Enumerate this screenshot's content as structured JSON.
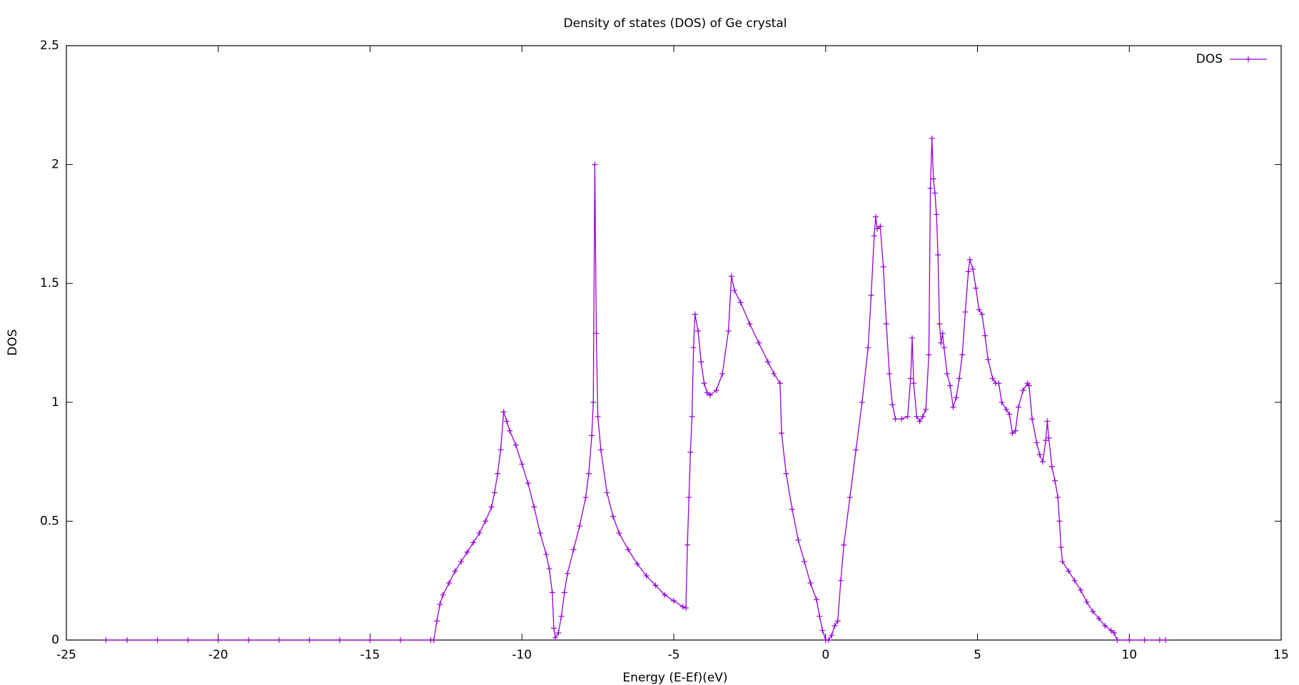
{
  "chart_data": {
    "type": "line",
    "title": "Density of states (DOS) of Ge crystal",
    "xlabel": "Energy (E-Ef)(eV)",
    "ylabel": "DOS",
    "x": [
      -23.7,
      -23,
      -22,
      -21,
      -20,
      -19,
      -18,
      -17,
      -16,
      -15,
      -14,
      -13,
      -12.9,
      -12.8,
      -12.7,
      -12.6,
      -12.4,
      -12.2,
      -12.0,
      -11.8,
      -11.6,
      -11.4,
      -11.2,
      -11.0,
      -10.9,
      -10.8,
      -10.7,
      -10.6,
      -10.5,
      -10.4,
      -10.2,
      -10.0,
      -9.8,
      -9.6,
      -9.4,
      -9.2,
      -9.1,
      -9.0,
      -8.95,
      -8.9,
      -8.8,
      -8.7,
      -8.6,
      -8.5,
      -8.3,
      -8.1,
      -7.9,
      -7.8,
      -7.7,
      -7.65,
      -7.6,
      -7.55,
      -7.5,
      -7.4,
      -7.2,
      -7.0,
      -6.8,
      -6.5,
      -6.2,
      -5.9,
      -5.6,
      -5.3,
      -5.0,
      -4.7,
      -4.6,
      -4.55,
      -4.5,
      -4.45,
      -4.4,
      -4.35,
      -4.3,
      -4.2,
      -4.1,
      -4.0,
      -3.9,
      -3.8,
      -3.6,
      -3.4,
      -3.2,
      -3.1,
      -3.0,
      -2.8,
      -2.5,
      -2.2,
      -1.9,
      -1.7,
      -1.5,
      -1.45,
      -1.3,
      -1.1,
      -0.9,
      -0.7,
      -0.5,
      -0.3,
      -0.2,
      -0.1,
      0.0,
      0.1,
      0.2,
      0.3,
      0.4,
      0.5,
      0.6,
      0.8,
      1.0,
      1.2,
      1.4,
      1.5,
      1.6,
      1.65,
      1.7,
      1.8,
      1.9,
      2.0,
      2.1,
      2.2,
      2.3,
      2.5,
      2.7,
      2.8,
      2.85,
      2.9,
      3.0,
      3.1,
      3.2,
      3.3,
      3.4,
      3.45,
      3.5,
      3.55,
      3.6,
      3.65,
      3.7,
      3.75,
      3.8,
      3.85,
      3.9,
      4.0,
      4.1,
      4.2,
      4.3,
      4.4,
      4.5,
      4.6,
      4.7,
      4.75,
      4.85,
      4.95,
      5.05,
      5.15,
      5.25,
      5.35,
      5.5,
      5.6,
      5.7,
      5.8,
      5.95,
      6.05,
      6.15,
      6.25,
      6.35,
      6.5,
      6.65,
      6.7,
      6.8,
      6.95,
      7.05,
      7.15,
      7.25,
      7.3,
      7.35,
      7.45,
      7.55,
      7.65,
      7.7,
      7.75,
      7.8,
      8.0,
      8.2,
      8.4,
      8.6,
      8.8,
      9.0,
      9.2,
      9.4,
      9.5,
      9.6,
      10.0,
      10.5,
      11.0,
      11.2
    ],
    "series": [
      {
        "name": "DOS",
        "color": "#9400d3",
        "values": [
          0,
          0,
          0,
          0,
          0,
          0,
          0,
          0,
          0,
          0,
          0,
          0,
          0,
          0.08,
          0.15,
          0.19,
          0.24,
          0.29,
          0.33,
          0.37,
          0.41,
          0.45,
          0.5,
          0.56,
          0.62,
          0.7,
          0.8,
          0.96,
          0.92,
          0.88,
          0.82,
          0.74,
          0.66,
          0.56,
          0.45,
          0.36,
          0.3,
          0.2,
          0.05,
          0.01,
          0.03,
          0.1,
          0.2,
          0.28,
          0.38,
          0.48,
          0.6,
          0.7,
          0.86,
          1.0,
          2.0,
          1.29,
          0.94,
          0.8,
          0.62,
          0.52,
          0.45,
          0.38,
          0.32,
          0.27,
          0.23,
          0.19,
          0.165,
          0.14,
          0.135,
          0.4,
          0.6,
          0.79,
          0.94,
          1.23,
          1.37,
          1.3,
          1.17,
          1.08,
          1.04,
          1.03,
          1.05,
          1.12,
          1.3,
          1.53,
          1.47,
          1.42,
          1.33,
          1.25,
          1.17,
          1.12,
          1.08,
          0.87,
          0.7,
          0.55,
          0.42,
          0.33,
          0.24,
          0.17,
          0.1,
          0.04,
          0,
          0,
          0.02,
          0.06,
          0.08,
          0.25,
          0.4,
          0.6,
          0.8,
          1.0,
          1.23,
          1.45,
          1.7,
          1.78,
          1.73,
          1.74,
          1.57,
          1.33,
          1.12,
          0.99,
          0.93,
          0.93,
          0.94,
          1.1,
          1.27,
          1.08,
          0.94,
          0.92,
          0.94,
          0.97,
          1.2,
          1.9,
          2.11,
          1.94,
          1.88,
          1.79,
          1.62,
          1.33,
          1.25,
          1.29,
          1.23,
          1.12,
          1.07,
          0.98,
          1.02,
          1.1,
          1.2,
          1.38,
          1.55,
          1.6,
          1.56,
          1.48,
          1.39,
          1.37,
          1.28,
          1.18,
          1.1,
          1.08,
          1.08,
          1.0,
          0.97,
          0.95,
          0.87,
          0.88,
          0.98,
          1.05,
          1.08,
          1.07,
          0.93,
          0.83,
          0.78,
          0.75,
          0.84,
          0.92,
          0.85,
          0.73,
          0.67,
          0.6,
          0.5,
          0.39,
          0.33,
          0.29,
          0.25,
          0.21,
          0.16,
          0.12,
          0.09,
          0.06,
          0.04,
          0.03,
          0,
          0,
          0,
          0,
          0
        ]
      }
    ],
    "xlim": [
      -25,
      15
    ],
    "xticks": [
      -25,
      -20,
      -15,
      -10,
      -5,
      0,
      5,
      10,
      15
    ],
    "ylim": [
      0,
      2.5
    ],
    "yticks": [
      0,
      0.5,
      1,
      1.5,
      2,
      2.5
    ],
    "legend": "top right"
  }
}
